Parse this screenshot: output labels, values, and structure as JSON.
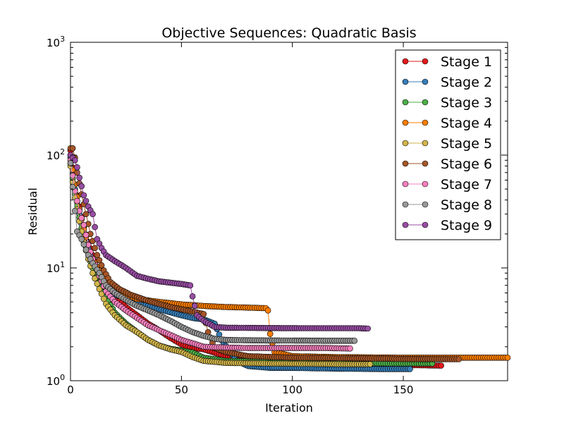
{
  "chart_data": {
    "type": "line",
    "title": "Objective Sequences: Quadratic Basis",
    "xlabel": "Iteration",
    "ylabel": "Residual",
    "xlim": [
      0,
      197
    ],
    "ylim": [
      1,
      1000
    ],
    "yscale": "log",
    "x_ticks": [
      "0",
      "50",
      "100",
      "150"
    ],
    "y_ticks": [
      {
        "base": "10",
        "exp": "0"
      },
      {
        "base": "10",
        "exp": "1"
      },
      {
        "base": "10",
        "exp": "2"
      },
      {
        "base": "10",
        "exp": "3"
      }
    ],
    "grid": false,
    "legend_position": "top-right",
    "marker": "circle",
    "series": [
      {
        "name": "Stage 1",
        "color": "#e41a1c",
        "points": [
          [
            0,
            110
          ],
          [
            2,
            55
          ],
          [
            4,
            35
          ],
          [
            6,
            23
          ],
          [
            8,
            17
          ],
          [
            10,
            13
          ],
          [
            13,
            9
          ],
          [
            16,
            7
          ],
          [
            20,
            5.5
          ],
          [
            25,
            4.5
          ],
          [
            30,
            3.8
          ],
          [
            35,
            3.2
          ],
          [
            40,
            2.8
          ],
          [
            45,
            2.4
          ],
          [
            50,
            2.1
          ],
          [
            55,
            1.95
          ],
          [
            60,
            1.9
          ],
          [
            70,
            1.65
          ],
          [
            80,
            1.5
          ],
          [
            90,
            1.45
          ],
          [
            100,
            1.42
          ],
          [
            120,
            1.4
          ],
          [
            140,
            1.38
          ],
          [
            160,
            1.37
          ],
          [
            167,
            1.36
          ]
        ]
      },
      {
        "name": "Stage 2",
        "color": "#377eb8",
        "points": [
          [
            0,
            95
          ],
          [
            2,
            50
          ],
          [
            4,
            30
          ],
          [
            6,
            20
          ],
          [
            8,
            15
          ],
          [
            10,
            11
          ],
          [
            13,
            8
          ],
          [
            16,
            6.5
          ],
          [
            20,
            5.8
          ],
          [
            30,
            5
          ],
          [
            40,
            4.3
          ],
          [
            50,
            3.8
          ],
          [
            55,
            3.6
          ],
          [
            60,
            3.5
          ],
          [
            65,
            3.2
          ],
          [
            68,
            2.3
          ],
          [
            75,
            1.5
          ],
          [
            80,
            1.35
          ],
          [
            90,
            1.3
          ],
          [
            100,
            1.3
          ],
          [
            120,
            1.28
          ],
          [
            140,
            1.27
          ],
          [
            153,
            1.27
          ]
        ]
      },
      {
        "name": "Stage 3",
        "color": "#4daf4a",
        "points": [
          [
            0,
            85
          ],
          [
            2,
            45
          ],
          [
            4,
            28
          ],
          [
            6,
            18
          ],
          [
            8,
            13
          ],
          [
            10,
            10
          ],
          [
            13,
            7.5
          ],
          [
            16,
            5.5
          ],
          [
            20,
            4
          ],
          [
            25,
            3.2
          ],
          [
            30,
            2.7
          ],
          [
            35,
            2.3
          ],
          [
            40,
            2.05
          ],
          [
            45,
            1.92
          ],
          [
            50,
            1.85
          ],
          [
            55,
            1.78
          ],
          [
            60,
            1.6
          ],
          [
            70,
            1.5
          ],
          [
            90,
            1.48
          ],
          [
            110,
            1.45
          ],
          [
            130,
            1.43
          ],
          [
            150,
            1.42
          ],
          [
            163,
            1.42
          ]
        ]
      },
      {
        "name": "Stage 4",
        "color": "#ff7f00",
        "points": [
          [
            0,
            100
          ],
          [
            2,
            55
          ],
          [
            4,
            33
          ],
          [
            6,
            22
          ],
          [
            8,
            16
          ],
          [
            10,
            12
          ],
          [
            13,
            9.5
          ],
          [
            16,
            7.5
          ],
          [
            20,
            6.5
          ],
          [
            25,
            5.8
          ],
          [
            30,
            5.3
          ],
          [
            40,
            5
          ],
          [
            50,
            4.75
          ],
          [
            60,
            4.6
          ],
          [
            70,
            4.5
          ],
          [
            80,
            4.45
          ],
          [
            88,
            4.4
          ],
          [
            89,
            4.2
          ],
          [
            90,
            2.6
          ],
          [
            92,
            1.8
          ],
          [
            100,
            1.65
          ],
          [
            120,
            1.62
          ],
          [
            150,
            1.6
          ],
          [
            170,
            1.6
          ],
          [
            190,
            1.6
          ],
          [
            197,
            1.6
          ]
        ]
      },
      {
        "name": "Stage 5",
        "color": "#d2b64a",
        "points": [
          [
            0,
            80
          ],
          [
            2,
            42
          ],
          [
            4,
            26
          ],
          [
            6,
            17
          ],
          [
            8,
            12
          ],
          [
            10,
            9
          ],
          [
            13,
            6.5
          ],
          [
            16,
            4.8
          ],
          [
            20,
            3.8
          ],
          [
            25,
            3.1
          ],
          [
            30,
            2.7
          ],
          [
            35,
            2.3
          ],
          [
            40,
            2.05
          ],
          [
            45,
            1.9
          ],
          [
            50,
            1.8
          ],
          [
            55,
            1.62
          ],
          [
            60,
            1.5
          ],
          [
            70,
            1.44
          ],
          [
            90,
            1.42
          ],
          [
            110,
            1.41
          ],
          [
            125,
            1.4
          ],
          [
            135,
            1.4
          ]
        ]
      },
      {
        "name": "Stage 6",
        "color": "#a65628",
        "points": [
          [
            0,
            115
          ],
          [
            1,
            115
          ],
          [
            2,
            95
          ],
          [
            3,
            70
          ],
          [
            5,
            45
          ],
          [
            7,
            30
          ],
          [
            9,
            20
          ],
          [
            12,
            13
          ],
          [
            15,
            9.5
          ],
          [
            18,
            7.5
          ],
          [
            22,
            6.5
          ],
          [
            27,
            5.8
          ],
          [
            35,
            5.1
          ],
          [
            45,
            4.5
          ],
          [
            55,
            4.1
          ],
          [
            60,
            3.9
          ],
          [
            62,
            2.7
          ],
          [
            65,
            1.95
          ],
          [
            70,
            1.8
          ],
          [
            80,
            1.65
          ],
          [
            100,
            1.6
          ],
          [
            130,
            1.58
          ],
          [
            150,
            1.56
          ],
          [
            175,
            1.55
          ]
        ]
      },
      {
        "name": "Stage 7",
        "color": "#f781bf",
        "points": [
          [
            0,
            90
          ],
          [
            2,
            48
          ],
          [
            4,
            32
          ],
          [
            6,
            24
          ],
          [
            8,
            16
          ],
          [
            10,
            12
          ],
          [
            13,
            8.5
          ],
          [
            16,
            6.2
          ],
          [
            20,
            5
          ],
          [
            25,
            4.2
          ],
          [
            30,
            3.6
          ],
          [
            35,
            3.1
          ],
          [
            40,
            2.8
          ],
          [
            45,
            2.55
          ],
          [
            50,
            2.3
          ],
          [
            55,
            2.15
          ],
          [
            60,
            2
          ],
          [
            70,
            1.97
          ],
          [
            80,
            1.95
          ],
          [
            100,
            1.95
          ],
          [
            115,
            1.95
          ],
          [
            126,
            1.93
          ]
        ]
      },
      {
        "name": "Stage 8",
        "color": "#999999",
        "points": [
          [
            0,
            85
          ],
          [
            2,
            32
          ],
          [
            3,
            21
          ],
          [
            5,
            18
          ],
          [
            8,
            13
          ],
          [
            10,
            11
          ],
          [
            13,
            9
          ],
          [
            16,
            7
          ],
          [
            20,
            6
          ],
          [
            25,
            5.2
          ],
          [
            30,
            4.6
          ],
          [
            35,
            4.2
          ],
          [
            40,
            3.8
          ],
          [
            45,
            3.4
          ],
          [
            50,
            3
          ],
          [
            55,
            2.7
          ],
          [
            60,
            2.5
          ],
          [
            65,
            2.35
          ],
          [
            70,
            2.3
          ],
          [
            80,
            2.28
          ],
          [
            100,
            2.27
          ],
          [
            120,
            2.26
          ],
          [
            128,
            2.26
          ]
        ]
      },
      {
        "name": "Stage 9",
        "color": "#984ea3",
        "points": [
          [
            0,
            100
          ],
          [
            2,
            90
          ],
          [
            3,
            78
          ],
          [
            4,
            63
          ],
          [
            5,
            53
          ],
          [
            6,
            44
          ],
          [
            8,
            35
          ],
          [
            10,
            30
          ],
          [
            11,
            23
          ],
          [
            12,
            18
          ],
          [
            14,
            15
          ],
          [
            16,
            13
          ],
          [
            20,
            11.5
          ],
          [
            25,
            10
          ],
          [
            30,
            8.5
          ],
          [
            35,
            8
          ],
          [
            40,
            7.6
          ],
          [
            45,
            7.4
          ],
          [
            50,
            7.2
          ],
          [
            54,
            7
          ],
          [
            55,
            5.6
          ],
          [
            57,
            3.8
          ],
          [
            60,
            3.4
          ],
          [
            65,
            3
          ],
          [
            70,
            2.95
          ],
          [
            90,
            2.93
          ],
          [
            110,
            2.92
          ],
          [
            130,
            2.92
          ],
          [
            134,
            2.9
          ]
        ]
      }
    ]
  }
}
